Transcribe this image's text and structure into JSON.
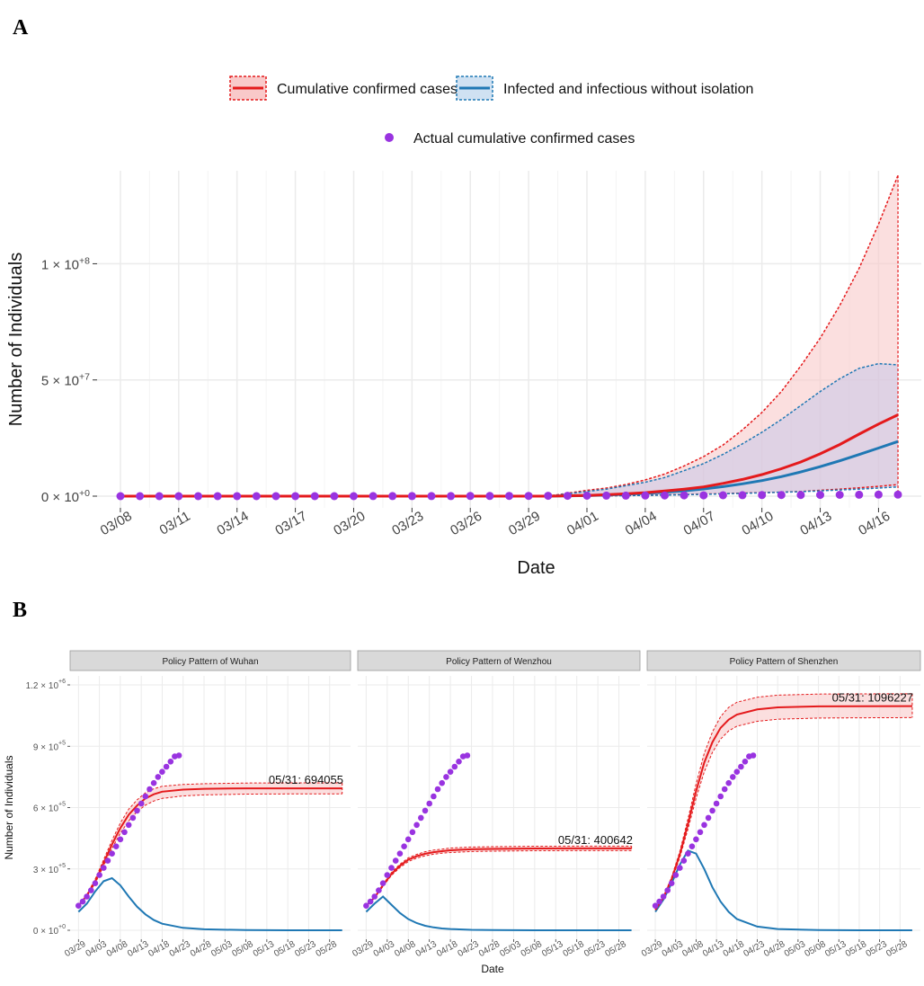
{
  "panel_a_label": "A",
  "panel_b_label": "B",
  "colors": {
    "confirmed": "#e41a1c",
    "confirmed_fill": "#f9c9c9",
    "infected": "#1f78b4",
    "infected_fill": "#c9c6e8",
    "actual": "#9933e0",
    "grid": "#ebebeb",
    "strip": "#d9d9d9"
  },
  "legend": {
    "confirmed": "Cumulative confirmed cases",
    "infected": "Infected and infectious without isolation",
    "actual": "Actual cumulative confirmed cases"
  },
  "chart_data": [
    {
      "type": "line",
      "panel": "A",
      "xlabel": "Date",
      "ylabel": "Number of Individuals",
      "x_ticks": [
        "03/08",
        "03/11",
        "03/14",
        "03/17",
        "03/20",
        "03/23",
        "03/26",
        "03/29",
        "04/01",
        "04/04",
        "04/07",
        "04/10",
        "04/13",
        "04/16"
      ],
      "y_ticks": [
        0,
        50000000,
        100000000
      ],
      "y_tick_labels": [
        {
          "base": "0 × 10",
          "exp": "+0"
        },
        {
          "base": "5 × 10",
          "exp": "+7"
        },
        {
          "base": "1 × 10",
          "exp": "+8"
        }
      ],
      "ylim": [
        0,
        140000000
      ],
      "x": [
        0,
        2,
        4,
        6,
        8,
        10,
        12,
        14,
        16,
        18,
        20,
        22,
        24,
        25,
        26,
        27,
        28,
        29,
        30,
        31,
        32,
        33,
        34,
        35,
        36,
        37,
        38,
        39,
        40
      ],
      "series": [
        {
          "name": "Cumulative confirmed cases",
          "kind": "line",
          "values": [
            0,
            0,
            0,
            0,
            0,
            0,
            0,
            0,
            0,
            0,
            0,
            0,
            300000,
            600000,
            1000000,
            1500000,
            2200000,
            3000000,
            4000000,
            5500000,
            7200000,
            9300000,
            11800000,
            14700000,
            18200000,
            22200000,
            26700000,
            31000000,
            35000000
          ],
          "lower": [
            0,
            0,
            0,
            0,
            0,
            0,
            0,
            0,
            0,
            0,
            0,
            0,
            100000,
            200000,
            300000,
            400000,
            550000,
            700000,
            900000,
            1100000,
            1300000,
            1500000,
            1700000,
            2000000,
            2500000,
            3000000,
            3600000,
            4200000,
            5000000
          ],
          "upper": [
            0,
            0,
            0,
            0,
            0,
            0,
            0,
            0,
            0,
            0,
            0,
            0,
            2500000,
            3500000,
            5000000,
            7000000,
            9500000,
            13000000,
            17000000,
            22000000,
            28500000,
            36000000,
            45000000,
            56000000,
            68000000,
            82000000,
            98000000,
            117000000,
            138000000
          ]
        },
        {
          "name": "Infected and infectious without isolation",
          "kind": "line",
          "values": [
            0,
            0,
            0,
            0,
            0,
            0,
            0,
            0,
            0,
            0,
            0,
            0,
            250000,
            500000,
            800000,
            1200000,
            1700000,
            2300000,
            3100000,
            4100000,
            5300000,
            6700000,
            8400000,
            10400000,
            12700000,
            15200000,
            17900000,
            20700000,
            23500000
          ],
          "lower": [
            0,
            0,
            0,
            0,
            0,
            0,
            0,
            0,
            0,
            0,
            0,
            0,
            80000,
            150000,
            220000,
            320000,
            450000,
            600000,
            780000,
            1000000,
            1200000,
            1450000,
            1700000,
            1950000,
            2300000,
            2650000,
            3000000,
            3500000,
            4000000
          ],
          "upper": [
            0,
            0,
            0,
            0,
            0,
            0,
            0,
            0,
            0,
            0,
            0,
            0,
            2000000,
            3000000,
            4500000,
            6000000,
            8000000,
            11000000,
            14000000,
            18000000,
            22500000,
            27500000,
            33000000,
            39000000,
            45000000,
            50500000,
            55000000,
            57000000,
            56500000
          ]
        }
      ],
      "actual": {
        "name": "Actual cumulative confirmed cases",
        "x": [
          0,
          1,
          2,
          3,
          4,
          5,
          6,
          7,
          8,
          9,
          10,
          11,
          12,
          13,
          14,
          15,
          16,
          17,
          18,
          19,
          20,
          21,
          22,
          23,
          24,
          25,
          26,
          27,
          28,
          29,
          30,
          31,
          32,
          33,
          34,
          35,
          36,
          37,
          38,
          39,
          40
        ],
        "values": [
          200,
          300,
          500,
          700,
          1000,
          1300,
          1700,
          2200,
          3500,
          5000,
          7000,
          10000,
          15000,
          20000,
          26000,
          33000,
          43000,
          54000,
          69000,
          85000,
          104000,
          124000,
          143000,
          164000,
          188000,
          214000,
          245000,
          275000,
          312000,
          337000,
          367000,
          398000,
          426000,
          457000,
          488000,
          520000,
          557000,
          590000,
          613000,
          642000,
          672000
        ]
      }
    },
    {
      "type": "line",
      "panel": "B",
      "xlabel": "Date",
      "ylabel": "Number of Individuals",
      "x_ticks": [
        "03/29",
        "04/03",
        "04/08",
        "04/13",
        "04/18",
        "04/23",
        "04/28",
        "05/03",
        "05/08",
        "05/13",
        "05/18",
        "05/23",
        "05/28"
      ],
      "y_ticks": [
        0,
        300000,
        600000,
        900000,
        1200000
      ],
      "y_tick_labels": [
        {
          "base": "0 × 10",
          "exp": "+0"
        },
        {
          "base": "3 × 10",
          "exp": "+5"
        },
        {
          "base": "6 × 10",
          "exp": "+5"
        },
        {
          "base": "9 × 10",
          "exp": "+5"
        },
        {
          "base": "1.2 × 10",
          "exp": "+6"
        }
      ],
      "ylim": [
        0,
        1200000
      ],
      "facets": [
        {
          "title": "Policy Pattern of Wuhan",
          "annotation": "05/31:   694055",
          "confirmed": {
            "x": [
              0,
              2,
              4,
              6,
              8,
              10,
              12,
              14,
              16,
              18,
              20,
              25,
              30,
              40,
              50,
              63
            ],
            "values": [
              120000,
              170000,
              240000,
              330000,
              420000,
              500000,
              565000,
              610000,
              645000,
              665000,
              678000,
              688000,
              692000,
              694000,
              694000,
              694055
            ],
            "lower": [
              120000,
              165000,
              230000,
              315000,
              400000,
              475000,
              535000,
              580000,
              612000,
              632000,
              645000,
              657000,
              662000,
              666000,
              667000,
              667000
            ],
            "upper": [
              120000,
              175000,
              250000,
              345000,
              440000,
              525000,
              592000,
              638000,
              672000,
              692000,
              704000,
              713000,
              717000,
              720000,
              721000,
              721000
            ]
          },
          "infected": {
            "x": [
              0,
              2,
              4,
              6,
              8,
              10,
              12,
              14,
              16,
              18,
              20,
              25,
              30,
              40,
              50,
              63
            ],
            "values": [
              90000,
              130000,
              190000,
              240000,
              255000,
              220000,
              165000,
              115000,
              78000,
              50000,
              32000,
              12000,
              5000,
              1000,
              200,
              0
            ]
          }
        },
        {
          "title": "Policy Pattern of Wenzhou",
          "annotation": "05/31:   400642",
          "confirmed": {
            "x": [
              0,
              2,
              4,
              6,
              8,
              10,
              12,
              14,
              16,
              18,
              20,
              25,
              30,
              40,
              50,
              63
            ],
            "values": [
              120000,
              160000,
              220000,
              275000,
              315000,
              345000,
              362000,
              374000,
              382000,
              387000,
              391000,
              396000,
              398000,
              400000,
              400500,
              400642
            ],
            "lower": [
              120000,
              158000,
              215000,
              268000,
              307000,
              336000,
              353000,
              364000,
              372000,
              377000,
              380000,
              385000,
              387000,
              389000,
              389500,
              389600
            ],
            "upper": [
              120000,
              162000,
              225000,
              282000,
              323000,
              354000,
              371000,
              384000,
              392000,
              397000,
              402000,
              407000,
              409000,
              411000,
              411500,
              411600
            ]
          },
          "infected": {
            "x": [
              0,
              2,
              4,
              6,
              8,
              10,
              12,
              14,
              16,
              18,
              20,
              25,
              30,
              40,
              50,
              63
            ],
            "values": [
              90000,
              130000,
              165000,
              125000,
              85000,
              55000,
              35000,
              22000,
              14000,
              9000,
              6000,
              2000,
              700,
              100,
              0,
              0
            ]
          }
        },
        {
          "title": "Policy Pattern of Shenzhen",
          "annotation": "05/31: 1096227",
          "confirmed": {
            "x": [
              0,
              2,
              4,
              6,
              8,
              10,
              12,
              14,
              16,
              18,
              20,
              25,
              30,
              40,
              50,
              63
            ],
            "values": [
              100000,
              160000,
              250000,
              370000,
              520000,
              680000,
              820000,
              920000,
              990000,
              1030000,
              1055000,
              1080000,
              1090000,
              1095000,
              1096000,
              1096227
            ],
            "lower": [
              100000,
              155000,
              240000,
              355000,
              495000,
              645000,
              775000,
              870000,
              935000,
              975000,
              998000,
              1022000,
              1032000,
              1038000,
              1039000,
              1040000
            ],
            "upper": [
              100000,
              165000,
              260000,
              385000,
              545000,
              715000,
              865000,
              970000,
              1045000,
              1090000,
              1115000,
              1140000,
              1150000,
              1155000,
              1156000,
              1157000
            ]
          },
          "infected": {
            "x": [
              0,
              2,
              4,
              6,
              8,
              10,
              12,
              14,
              16,
              18,
              20,
              25,
              30,
              40,
              50,
              63
            ],
            "values": [
              90000,
              150000,
              230000,
              320000,
              390000,
              375000,
              300000,
              210000,
              140000,
              90000,
              55000,
              18000,
              6000,
              800,
              100,
              0
            ]
          }
        }
      ],
      "actual": {
        "x": [
          0,
          1,
          2,
          3,
          4,
          5,
          6,
          7,
          8,
          9,
          10,
          11,
          12,
          13,
          14,
          15,
          16,
          17,
          18,
          19,
          20,
          21,
          22,
          23,
          24
        ],
        "values": [
          120000,
          140000,
          165000,
          195000,
          230000,
          270000,
          305000,
          340000,
          375000,
          410000,
          445000,
          480000,
          515000,
          550000,
          585000,
          620000,
          655000,
          690000,
          720000,
          750000,
          775000,
          800000,
          825000,
          850000,
          855000
        ]
      }
    }
  ]
}
